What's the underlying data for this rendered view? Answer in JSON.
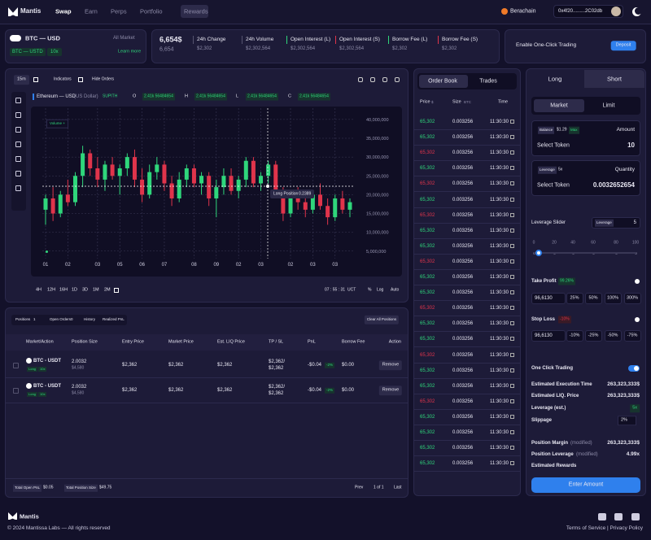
{
  "nav": {
    "brand": "Mantis",
    "links": [
      "Swap",
      "Earn",
      "Perps",
      "Portfolio",
      "Rewards"
    ],
    "network": "Berachain",
    "wallet": "0x4f20.........2C02db"
  },
  "market": {
    "pair": "BTC — USD",
    "filter": "All Market",
    "quote": "BTC — USTD",
    "leverage": "10x",
    "learn": "Learn more"
  },
  "stats": {
    "price": "6,654$",
    "price_sub": "6,654",
    "items": [
      {
        "label": "24h Change",
        "value": "$2,302"
      },
      {
        "label": "24h Volume",
        "value": "$2,302,564"
      },
      {
        "label": "Open Interest (L)",
        "value": "$2,302,564"
      },
      {
        "label": "Open Interest (S)",
        "value": "$2,302,564"
      },
      {
        "label": "Borrow Fee (L)",
        "value": "$2,302"
      },
      {
        "label": "Borrow Fee (S)",
        "value": "$2,302"
      }
    ]
  },
  "one_click": {
    "label": "Enable One-Click Trading",
    "button": "Deposit"
  },
  "chart_toolbar": {
    "interval": "15m",
    "indicators": "Indicators",
    "hide_orders": "Hide Orders"
  },
  "chart_legend": {
    "symbol": "Ethereum — USD",
    "currency": "(US Dollar)",
    "tag": "SUPITH",
    "ohlc": [
      {
        "key": "O",
        "value": "2.41k 56484654"
      },
      {
        "key": "H",
        "value": "2.41k 56484654"
      },
      {
        "key": "L",
        "value": "2.41k 56484654"
      },
      {
        "key": "C",
        "value": "2.41k 56484654"
      }
    ]
  },
  "chart_data": {
    "type": "candlestick",
    "volume_label": "Volume +",
    "up_color": "#2fd67b",
    "down_color": "#e0344b",
    "grid": true,
    "categories": [
      "01",
      null,
      null,
      "02",
      null,
      null,
      null,
      "03",
      null,
      null,
      "05",
      null,
      null,
      "06",
      null,
      null,
      "07",
      null,
      null,
      null,
      "08",
      null,
      null,
      "09",
      null,
      null,
      "02",
      null,
      null,
      "03",
      null,
      null,
      null,
      "02",
      null,
      null,
      "03",
      null,
      null,
      "03",
      null,
      null
    ],
    "open": [
      16000000,
      19000000,
      15000000,
      20000000,
      18000000,
      25000000,
      31000000,
      27000000,
      24000000,
      28000000,
      25000000,
      27000000,
      30000000,
      24000000,
      20000000,
      26000000,
      28000000,
      23000000,
      19000000,
      24000000,
      27000000,
      23000000,
      25000000,
      19000000,
      22000000,
      25000000,
      21000000,
      24000000,
      29000000,
      23000000,
      25000000,
      28000000,
      20000000,
      15000000,
      19000000,
      18000000,
      16000000,
      20000000,
      17000000,
      14000000,
      19000000,
      16000000
    ],
    "high": [
      20000000,
      22000000,
      21000000,
      24000000,
      26000000,
      33000000,
      32000000,
      30000000,
      29000000,
      30000000,
      28000000,
      31000000,
      32000000,
      27000000,
      28000000,
      30000000,
      29000000,
      25000000,
      26000000,
      28000000,
      28000000,
      26000000,
      26000000,
      24000000,
      27000000,
      27000000,
      25000000,
      30000000,
      30000000,
      26000000,
      29000000,
      29000000,
      22000000,
      20000000,
      22000000,
      20000000,
      21000000,
      23000000,
      19000000,
      20000000,
      21000000,
      19000000
    ],
    "low": [
      12000000,
      13000000,
      14000000,
      17000000,
      17000000,
      22000000,
      25000000,
      22000000,
      21000000,
      24000000,
      20000000,
      25000000,
      22000000,
      18000000,
      19000000,
      24000000,
      21000000,
      17000000,
      18000000,
      22000000,
      22000000,
      20000000,
      17000000,
      14000000,
      20000000,
      20000000,
      19000000,
      22000000,
      22000000,
      21000000,
      23000000,
      19000000,
      13000000,
      14000000,
      16000000,
      14000000,
      15000000,
      16000000,
      12000000,
      13000000,
      15000000,
      14000000
    ],
    "close": [
      19000000,
      15000000,
      20000000,
      18000000,
      25000000,
      31000000,
      27000000,
      24000000,
      28000000,
      25000000,
      27000000,
      30000000,
      24000000,
      20000000,
      26000000,
      28000000,
      23000000,
      19000000,
      24000000,
      27000000,
      23000000,
      25000000,
      19000000,
      22000000,
      25000000,
      21000000,
      24000000,
      29000000,
      23000000,
      25000000,
      28000000,
      20000000,
      15000000,
      19000000,
      18000000,
      16000000,
      20000000,
      17000000,
      14000000,
      19000000,
      16000000,
      18000000
    ],
    "ylim": [
      3000000,
      43000000
    ],
    "yticks": [
      {
        "value": 40000000,
        "label": "40,000,000"
      },
      {
        "value": 35000000,
        "label": "35,000,000"
      },
      {
        "value": 30000000,
        "label": "30,000,000"
      },
      {
        "value": 25000000,
        "label": "25,000,000"
      },
      {
        "value": 20000000,
        "label": "20,000,000"
      },
      {
        "value": 15000000,
        "label": "15,000,000"
      },
      {
        "value": 10000000,
        "label": "10,000,000"
      },
      {
        "value": 5000000,
        "label": "5,000,000"
      }
    ],
    "annotation": {
      "label": "Long Position",
      "value": "0.2389"
    }
  },
  "chart_footer": {
    "timeframes": [
      "4H",
      "12H",
      "16H",
      "1D",
      "3D",
      "1M",
      "2M"
    ],
    "clock": "07 : 55 : 31",
    "timezone": "UCT",
    "scale_options": [
      "%",
      "Log",
      "Auto"
    ]
  },
  "positions": {
    "tabs": [
      {
        "label": "Positions",
        "count": "1"
      },
      {
        "label": "Open Orders",
        "count": "0"
      },
      {
        "label": "History"
      },
      {
        "label": "Realized PnL"
      }
    ],
    "clear": "Clear All Positions",
    "headers": [
      "Market/Action",
      "Position Size",
      "Entry Price",
      "Market Price",
      "Est. LIQ Price",
      "TP / SL",
      "PnL",
      "Borrow Fee",
      "Action"
    ],
    "rows": [
      {
        "market": "BTC - USDT",
        "side": "Long",
        "leverage": "10x",
        "size": "2.0032",
        "size_usd": "$4,580",
        "entry": "$2,362",
        "mark": "$2,362",
        "liq": "$2,362",
        "tp": "$2,362/",
        "sl": "$2,362",
        "pnl": "-$0.04",
        "pnl_pct": "-2%",
        "fee": "$0.00",
        "action": "Remove"
      },
      {
        "market": "BTC - USDT",
        "side": "Long",
        "leverage": "10x",
        "size": "2.0032",
        "size_usd": "$4,580",
        "entry": "$2,362",
        "mark": "$2,362",
        "liq": "$2,362",
        "tp": "$2,362/",
        "sl": "$2,362",
        "pnl": "-$0.04",
        "pnl_pct": "-2%",
        "fee": "$0.00",
        "action": "Remove"
      }
    ],
    "footer": {
      "pnl_label": "Total Open PnL",
      "pnl": "$0.05",
      "size_label": "Total Position Size",
      "size": "$49.75",
      "prev": "Prev",
      "page": "1 of 1",
      "last": "Last"
    }
  },
  "orderbook": {
    "tabs": [
      "Order Book",
      "Trades"
    ],
    "headers": [
      {
        "label": "Price",
        "unit": "$"
      },
      {
        "label": "Size",
        "unit": "BTC"
      },
      {
        "label": "Time"
      }
    ],
    "rows": [
      {
        "price": "65,302",
        "size": "0.003256",
        "time": "11:30:30",
        "color": "#2fd67b"
      },
      {
        "price": "65,302",
        "size": "0.003256",
        "time": "11:30:30",
        "color": "#2fd67b"
      },
      {
        "price": "65,302",
        "size": "0.003256",
        "time": "11:30:30",
        "color": "#e0344b"
      },
      {
        "price": "65,302",
        "size": "0.003256",
        "time": "11:30:30",
        "color": "#2fd67b"
      },
      {
        "price": "65,302",
        "size": "0.003256",
        "time": "11:30:30",
        "color": "#e0344b"
      },
      {
        "price": "65,302",
        "size": "0.003256",
        "time": "11:30:30",
        "color": "#2fd67b"
      },
      {
        "price": "65,302",
        "size": "0.003256",
        "time": "11:30:30",
        "color": "#e0344b"
      },
      {
        "price": "65,302",
        "size": "0.003256",
        "time": "11:30:30",
        "color": "#2fd67b"
      },
      {
        "price": "65,302",
        "size": "0.003256",
        "time": "11:30:30",
        "color": "#2fd67b"
      },
      {
        "price": "65,302",
        "size": "0.003256",
        "time": "11:30:30",
        "color": "#e0344b"
      },
      {
        "price": "65,302",
        "size": "0.003256",
        "time": "11:30:30",
        "color": "#2fd67b"
      },
      {
        "price": "65,302",
        "size": "0.003256",
        "time": "11:30:30",
        "color": "#2fd67b"
      },
      {
        "price": "65,302",
        "size": "0.003256",
        "time": "11:30:30",
        "color": "#e0344b"
      },
      {
        "price": "65,302",
        "size": "0.003256",
        "time": "11:30:30",
        "color": "#2fd67b"
      },
      {
        "price": "65,302",
        "size": "0.003256",
        "time": "11:30:30",
        "color": "#2fd67b"
      },
      {
        "price": "65,302",
        "size": "0.003256",
        "time": "11:30:30",
        "color": "#e0344b"
      },
      {
        "price": "65,302",
        "size": "0.003256",
        "time": "11:30:30",
        "color": "#2fd67b"
      },
      {
        "price": "65,302",
        "size": "0.003256",
        "time": "11:30:30",
        "color": "#2fd67b"
      },
      {
        "price": "65,302",
        "size": "0.003256",
        "time": "11:30:30",
        "color": "#e0344b"
      },
      {
        "price": "65,302",
        "size": "0.003256",
        "time": "11:30:30",
        "color": "#2fd67b"
      },
      {
        "price": "65,302",
        "size": "0.003256",
        "time": "11:30:30",
        "color": "#2fd67b"
      },
      {
        "price": "65,302",
        "size": "0.003256",
        "time": "11:30:30",
        "color": "#2fd67b"
      },
      {
        "price": "65,302",
        "size": "0.003256",
        "time": "11:30:30",
        "color": "#2fd67b"
      }
    ]
  },
  "trade": {
    "sides": [
      "Long",
      "Short"
    ],
    "order_types": [
      "Market",
      "Limit"
    ],
    "balance_label": "Balance",
    "balance": "$1.29",
    "max": "Max",
    "amount_label": "Amount",
    "select_token": "Select Token",
    "amount": "10",
    "leverage_label": "Leverage",
    "leverage": "5x",
    "quantity_label": "Quantity",
    "select_token_2": "Select Token",
    "quantity": "0.0032652654",
    "slider_label": "Leverage Slider",
    "slider_tag": "Leverage",
    "slider_value": "5",
    "slider_ticks": [
      "0",
      "20",
      "40",
      "60",
      "80",
      "100"
    ],
    "take_profit": "Take Profit",
    "take_profit_pct": "99.26%",
    "tp_input": "96,6130",
    "tp_options": [
      "25%",
      "50%",
      "100%",
      "300%"
    ],
    "stop_loss": "Stop Loss",
    "stop_loss_pct": "-10%",
    "sl_input": "96,6130",
    "sl_options": [
      "-10%",
      "-25%",
      "-50%",
      "-75%"
    ],
    "one_click": "One Click Trading",
    "summary": [
      {
        "label": "Estimated Execution Time",
        "value": "263,323,333$"
      },
      {
        "label": "Estimated LIQ. Price",
        "value": "263,323,333$"
      },
      {
        "label": "Leverage (est.)",
        "value": "5x"
      },
      {
        "label": "Slippage",
        "value": "2%"
      }
    ],
    "modified": [
      {
        "label": "Position Margin",
        "note": "(modified)",
        "value": "263,323,333$"
      },
      {
        "label": "Position Leverage",
        "note": "(modified)",
        "value": "4.99x"
      },
      {
        "label": "Estimated Rewards"
      }
    ],
    "submit": "Enter Amount"
  },
  "footer": {
    "brand": "Mantis",
    "copyright": "© 2024 Mantissa Labs — All rights reserved",
    "links": "Terms of Service | Privacy Policy"
  }
}
